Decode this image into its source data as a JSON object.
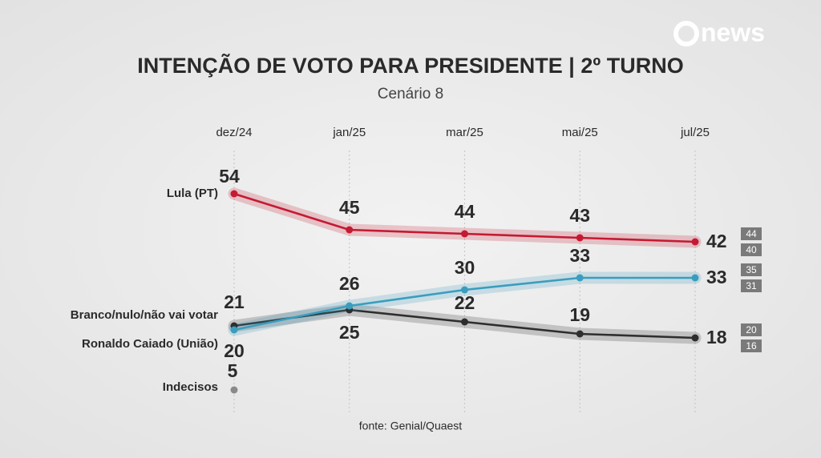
{
  "logo": "news",
  "chart_data": {
    "type": "line",
    "title": "INTENÇÃO DE VOTO PARA PRESIDENTE | 2º TURNO",
    "subtitle": "Cenário 8",
    "source": "fonte: Genial/Quaest",
    "categories": [
      "dez/24",
      "jan/25",
      "mar/25",
      "mai/25",
      "jul/25"
    ],
    "ylim": [
      0,
      60
    ],
    "grid": true,
    "series": [
      {
        "name": "Lula (PT)",
        "color": "#c41a32",
        "values": [
          54,
          45,
          44,
          43,
          42
        ],
        "range": [
          44,
          40
        ]
      },
      {
        "name": "Branco/nulo/não vai votar",
        "color": "#2e2e2e",
        "values": [
          21,
          25,
          22,
          19,
          18
        ],
        "range": [
          20,
          16
        ]
      },
      {
        "name": "Ronaldo Caiado (União)",
        "color": "#3a9dbd",
        "values": [
          20,
          26,
          30,
          33,
          33
        ],
        "range": [
          35,
          31
        ]
      },
      {
        "name": "Indecisos",
        "color": "#8a8a8a",
        "values": [
          5,
          null,
          null,
          null,
          null
        ]
      }
    ]
  }
}
